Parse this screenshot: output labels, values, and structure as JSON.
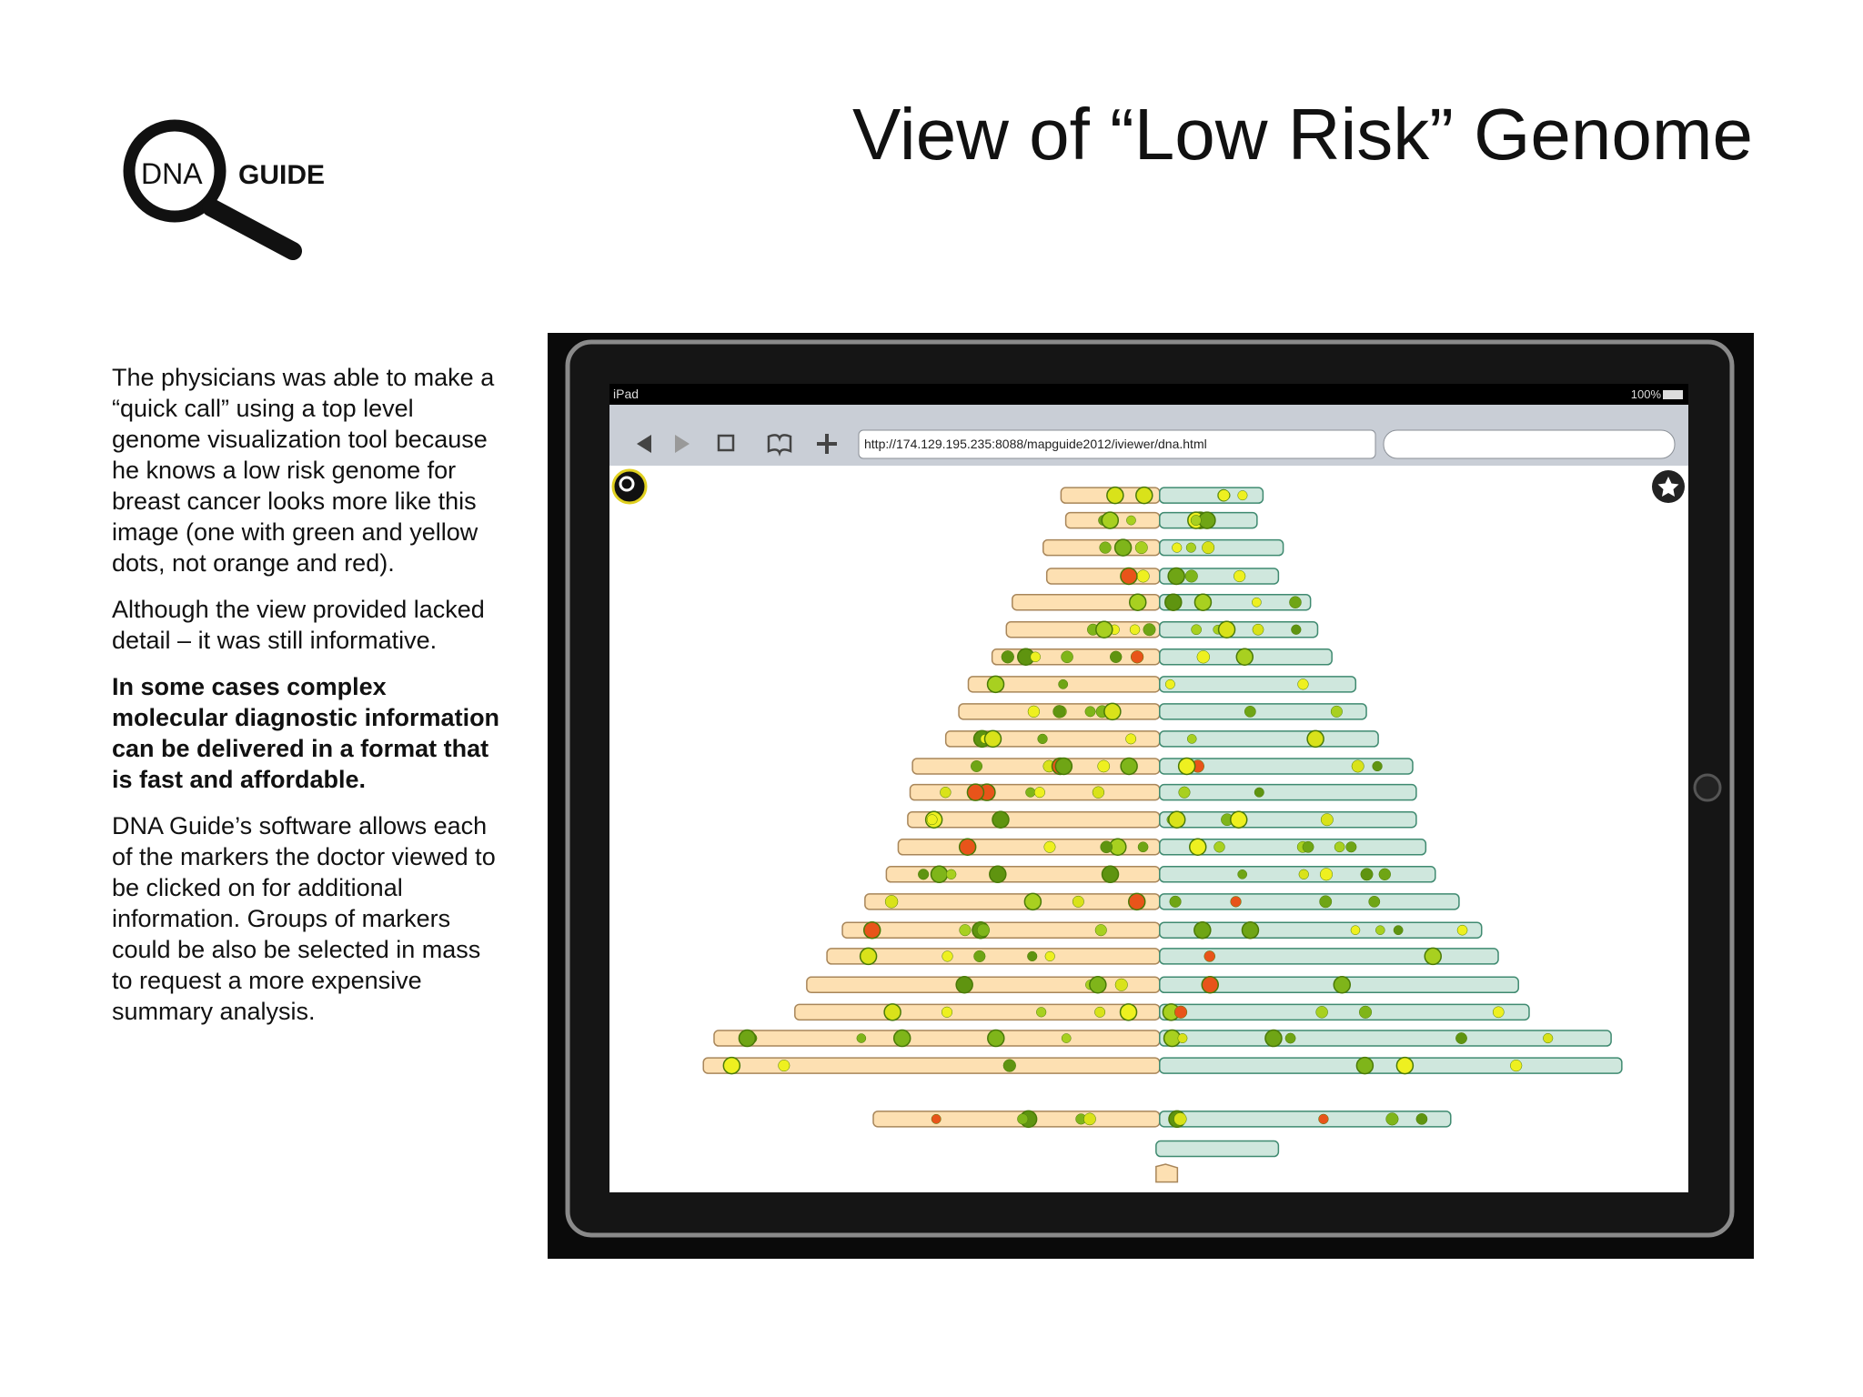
{
  "logo": {
    "left": "DNA",
    "right": "GUIDE"
  },
  "header": {
    "title": "View of “Low Risk” Genome"
  },
  "body": {
    "paragraphs": [
      "The physicians was able to make a “quick call” using a top level genome visualization tool because he knows a low risk genome for breast cancer looks more like this image (one with green and yellow dots, not orange and red).",
      "Although the view provided lacked detail – it was still informative.",
      "In some cases complex molecular diagnostic information can be delivered in a format that is fast and affordable.",
      "DNA Guide’s software allows each of the markers the doctor viewed to be clicked on for additional information.  Groups of markers could be also be selected in mass to request a more expensive summary analysis."
    ]
  },
  "device": {
    "status_left": "iPad",
    "status_right": "100%",
    "url": "http://174.129.195.235:8088/mapguide2012/iviewer/dna.html"
  }
}
